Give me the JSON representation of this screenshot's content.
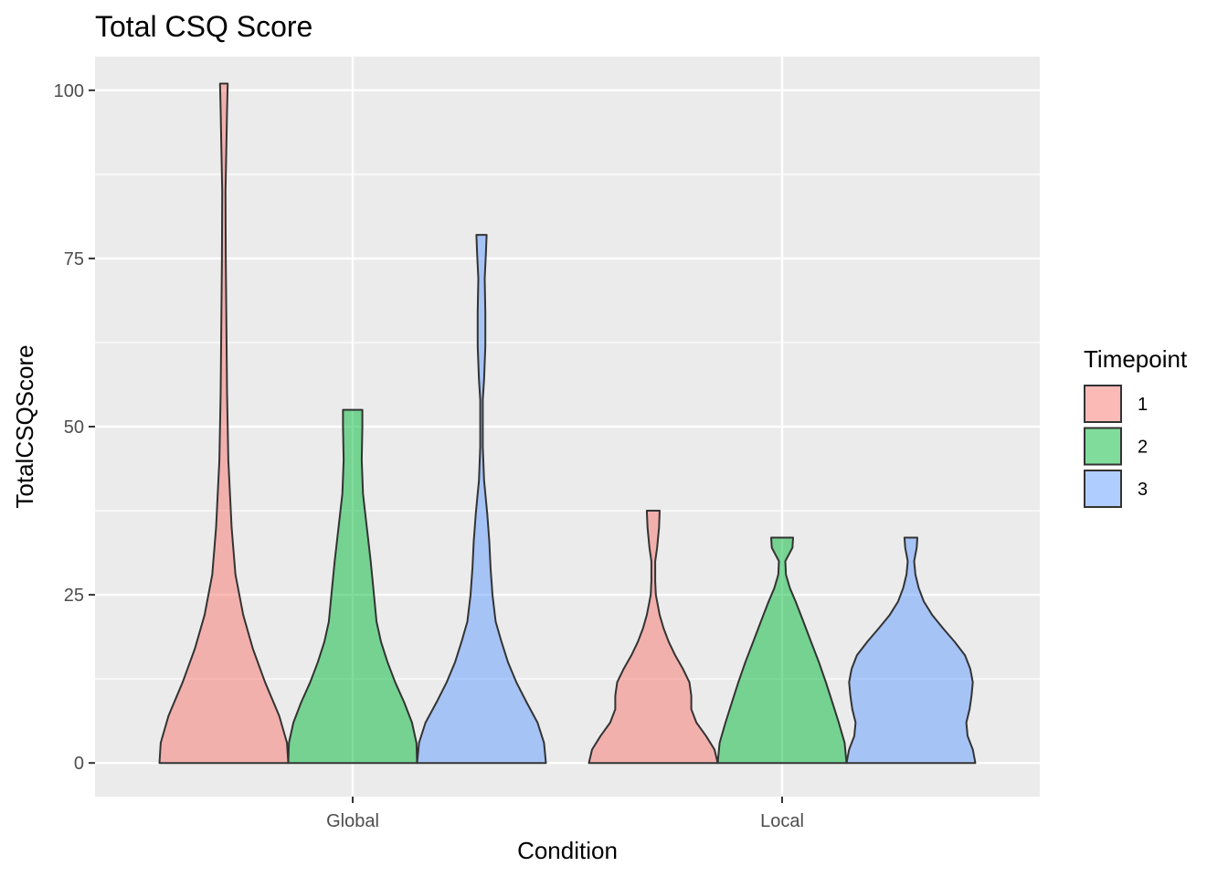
{
  "chart_data": {
    "type": "violin",
    "title": "Total CSQ Score",
    "xlabel": "Condition",
    "ylabel": "TotalCSQScore",
    "categories": [
      "Global",
      "Local"
    ],
    "ylim": [
      -5,
      105
    ],
    "yticks": [
      0,
      25,
      50,
      75,
      100
    ],
    "grid": true,
    "legend": {
      "title": "Timepoint",
      "position": "right",
      "entries": [
        "1",
        "2",
        "3"
      ]
    },
    "series": [
      {
        "name": "1",
        "color": "#F8766D",
        "violins": [
          {
            "category": "Global",
            "max_halfwidth": 1.0,
            "profile": [
              [
                0,
                1.0
              ],
              [
                3,
                0.98
              ],
              [
                7,
                0.86
              ],
              [
                12,
                0.64
              ],
              [
                17,
                0.45
              ],
              [
                22,
                0.3
              ],
              [
                28,
                0.18
              ],
              [
                35,
                0.12
              ],
              [
                45,
                0.07
              ],
              [
                55,
                0.05
              ],
              [
                65,
                0.04
              ],
              [
                75,
                0.03
              ],
              [
                85,
                0.025
              ],
              [
                92,
                0.04
              ],
              [
                97,
                0.05
              ],
              [
                101,
                0.06
              ]
            ]
          },
          {
            "category": "Local",
            "max_halfwidth": 1.0,
            "profile": [
              [
                0,
                1.0
              ],
              [
                2,
                0.95
              ],
              [
                4,
                0.82
              ],
              [
                6,
                0.67
              ],
              [
                8,
                0.59
              ],
              [
                10,
                0.59
              ],
              [
                12,
                0.56
              ],
              [
                14,
                0.46
              ],
              [
                16,
                0.34
              ],
              [
                18,
                0.24
              ],
              [
                20,
                0.16
              ],
              [
                22,
                0.1
              ],
              [
                24,
                0.06
              ],
              [
                25,
                0.04
              ],
              [
                27,
                0.03
              ],
              [
                30,
                0.03
              ],
              [
                32,
                0.06
              ],
              [
                35,
                0.09
              ],
              [
                37.5,
                0.1
              ]
            ]
          }
        ]
      },
      {
        "name": "2",
        "color": "#00BA38",
        "violins": [
          {
            "category": "Global",
            "max_halfwidth": 1.0,
            "profile": [
              [
                0,
                1.0
              ],
              [
                3,
                0.99
              ],
              [
                6,
                0.92
              ],
              [
                9,
                0.8
              ],
              [
                12,
                0.66
              ],
              [
                15,
                0.54
              ],
              [
                18,
                0.44
              ],
              [
                21,
                0.37
              ],
              [
                25,
                0.33
              ],
              [
                30,
                0.28
              ],
              [
                35,
                0.22
              ],
              [
                40,
                0.16
              ],
              [
                45,
                0.14
              ],
              [
                50,
                0.15
              ],
              [
                52.5,
                0.15
              ]
            ]
          },
          {
            "category": "Local",
            "max_halfwidth": 1.0,
            "profile": [
              [
                0,
                1.0
              ],
              [
                3,
                0.97
              ],
              [
                6,
                0.88
              ],
              [
                9,
                0.78
              ],
              [
                12,
                0.68
              ],
              [
                15,
                0.57
              ],
              [
                18,
                0.45
              ],
              [
                21,
                0.33
              ],
              [
                24,
                0.21
              ],
              [
                26,
                0.12
              ],
              [
                28,
                0.06
              ],
              [
                30,
                0.05
              ],
              [
                32,
                0.16
              ],
              [
                33.5,
                0.17
              ]
            ]
          }
        ]
      },
      {
        "name": "3",
        "color": "#619CFF",
        "violins": [
          {
            "category": "Global",
            "max_halfwidth": 1.0,
            "profile": [
              [
                0,
                1.0
              ],
              [
                3,
                0.97
              ],
              [
                6,
                0.87
              ],
              [
                9,
                0.7
              ],
              [
                12,
                0.54
              ],
              [
                15,
                0.41
              ],
              [
                18,
                0.31
              ],
              [
                21,
                0.22
              ],
              [
                25,
                0.17
              ],
              [
                29,
                0.14
              ],
              [
                33,
                0.12
              ],
              [
                37,
                0.09
              ],
              [
                42,
                0.04
              ],
              [
                47,
                0.02
              ],
              [
                54,
                0.02
              ],
              [
                57,
                0.04
              ],
              [
                62,
                0.06
              ],
              [
                67,
                0.06
              ],
              [
                72,
                0.05
              ],
              [
                76,
                0.07
              ],
              [
                78.5,
                0.08
              ]
            ]
          },
          {
            "category": "Local",
            "max_halfwidth": 1.0,
            "profile": [
              [
                0,
                1.0
              ],
              [
                2,
                0.96
              ],
              [
                4,
                0.88
              ],
              [
                6,
                0.86
              ],
              [
                8,
                0.91
              ],
              [
                10,
                0.94
              ],
              [
                12,
                0.96
              ],
              [
                14,
                0.92
              ],
              [
                16,
                0.84
              ],
              [
                18,
                0.68
              ],
              [
                20,
                0.5
              ],
              [
                22,
                0.33
              ],
              [
                24,
                0.2
              ],
              [
                26,
                0.12
              ],
              [
                28,
                0.07
              ],
              [
                30,
                0.05
              ],
              [
                32,
                0.09
              ],
              [
                33.5,
                0.1
              ]
            ]
          }
        ]
      }
    ]
  }
}
